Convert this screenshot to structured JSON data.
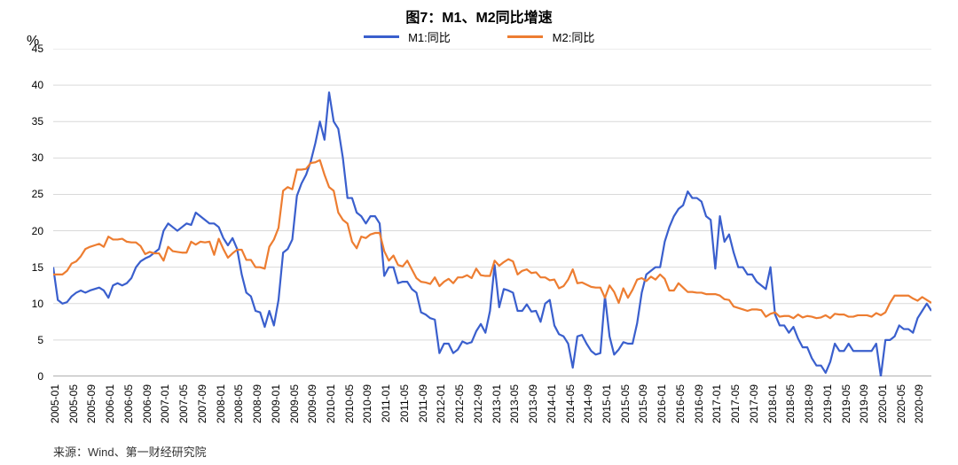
{
  "chart": {
    "title": "图7：M1、M2同比增速",
    "title_fontsize": 16,
    "y_unit": "%",
    "source": "来源：Wind、第一财经研究院",
    "source_fontsize": 13,
    "background_color": "#ffffff",
    "grid_color": "#d9d9d9",
    "axis_color": "#808080",
    "tick_fontsize": 12,
    "legend_fontsize": 13,
    "ylim": [
      0,
      45
    ],
    "ytick_step": 5,
    "yticks": [
      0,
      5,
      10,
      15,
      20,
      25,
      30,
      35,
      40,
      45
    ],
    "line_width": 2.2,
    "series": [
      {
        "name": "M1:同比",
        "color": "#3a5fcd",
        "data": [
          15.0,
          10.5,
          10.0,
          10.2,
          11.0,
          11.5,
          11.8,
          11.5,
          11.8,
          12.0,
          12.2,
          11.8,
          10.8,
          12.5,
          12.8,
          12.5,
          12.8,
          13.5,
          15.0,
          15.8,
          16.2,
          16.5,
          17.0,
          17.5,
          20.0,
          21.0,
          20.5,
          20.0,
          20.5,
          21.0,
          20.8,
          22.5,
          22.0,
          21.5,
          21.0,
          21.0,
          20.5,
          19.0,
          18.0,
          19.0,
          17.5,
          14.0,
          11.5,
          11.0,
          9.0,
          8.8,
          6.8,
          9.0,
          7.0,
          10.5,
          17.0,
          17.5,
          18.8,
          24.8,
          26.5,
          27.7,
          29.5,
          32.0,
          35.0,
          32.5,
          39.0,
          35.0,
          34.0,
          30.0,
          24.5,
          24.5,
          22.5,
          22.0,
          21.0,
          22.0,
          22.0,
          21.0,
          13.8,
          15.0,
          15.0,
          12.8,
          13.0,
          13.0,
          12.0,
          11.5,
          8.8,
          8.5,
          8.0,
          7.8,
          3.2,
          4.5,
          4.5,
          3.2,
          3.7,
          4.8,
          4.5,
          4.7,
          6.2,
          7.2,
          6.0,
          9.0,
          15.3,
          9.5,
          12.0,
          11.8,
          11.5,
          9.0,
          9.0,
          9.9,
          8.9,
          9.0,
          7.5,
          10.0,
          10.5,
          7.0,
          5.8,
          5.5,
          4.5,
          1.2,
          5.5,
          5.7,
          4.5,
          3.5,
          3.0,
          3.2,
          11.0,
          5.5,
          3.0,
          3.7,
          4.7,
          4.5,
          4.5,
          7.3,
          11.5,
          14.0,
          14.5,
          15.0,
          15.0,
          18.5,
          20.5,
          22.0,
          23.0,
          23.5,
          25.4,
          24.5,
          24.5,
          24.0,
          22.0,
          21.5,
          14.8,
          22.0,
          18.5,
          19.5,
          17.0,
          15.0,
          15.0,
          14.0,
          14.0,
          13.0,
          12.5,
          12.0,
          15.0,
          8.5,
          7.0,
          7.0,
          6.0,
          6.8,
          5.2,
          4.0,
          4.0,
          2.5,
          1.5,
          1.5,
          0.5,
          2.0,
          4.5,
          3.5,
          3.5,
          4.5,
          3.5,
          3.5,
          3.5,
          3.5,
          3.5,
          4.5,
          0.0,
          5.0,
          5.0,
          5.5,
          7.0,
          6.5,
          6.5,
          6.0,
          8.0,
          9.0,
          10.0,
          9.0
        ]
      },
      {
        "name": "M2:同比",
        "color": "#ed7d31",
        "data": [
          14.0,
          14.0,
          14.0,
          14.5,
          15.5,
          15.8,
          16.5,
          17.5,
          17.8,
          18.0,
          18.2,
          17.8,
          19.2,
          18.8,
          18.8,
          18.9,
          18.5,
          18.4,
          18.4,
          17.9,
          16.8,
          17.1,
          16.9,
          16.9,
          15.9,
          17.8,
          17.2,
          17.1,
          17.0,
          17.0,
          18.5,
          18.1,
          18.5,
          18.4,
          18.5,
          16.7,
          18.9,
          17.5,
          16.3,
          16.9,
          17.4,
          17.4,
          16.0,
          16.0,
          15.0,
          15.0,
          14.8,
          17.8,
          18.8,
          20.4,
          25.5,
          26.0,
          25.7,
          28.4,
          28.4,
          28.5,
          29.3,
          29.4,
          29.7,
          27.7,
          26.0,
          25.5,
          22.5,
          21.5,
          21.0,
          18.5,
          17.6,
          19.2,
          19.0,
          19.5,
          19.7,
          19.7,
          17.2,
          15.9,
          16.6,
          15.3,
          15.1,
          15.9,
          14.7,
          13.5,
          13.0,
          12.9,
          12.7,
          13.6,
          12.4,
          13.0,
          13.4,
          12.8,
          13.6,
          13.6,
          13.9,
          13.5,
          14.8,
          13.9,
          13.8,
          13.8,
          15.9,
          15.2,
          15.7,
          16.1,
          15.8,
          14.0,
          14.5,
          14.7,
          14.2,
          14.3,
          13.6,
          13.6,
          13.2,
          13.3,
          12.1,
          12.4,
          13.3,
          14.7,
          12.8,
          12.9,
          12.6,
          12.3,
          12.2,
          12.2,
          10.8,
          12.5,
          11.6,
          10.1,
          12.1,
          10.8,
          11.9,
          13.3,
          13.5,
          13.1,
          13.7,
          13.3,
          14.0,
          13.4,
          11.8,
          11.8,
          12.8,
          12.2,
          11.6,
          11.6,
          11.5,
          11.5,
          11.3,
          11.3,
          11.3,
          11.1,
          10.6,
          10.5,
          9.6,
          9.4,
          9.2,
          9.0,
          9.2,
          9.2,
          9.1,
          8.2,
          8.6,
          8.8,
          8.2,
          8.3,
          8.3,
          8.0,
          8.5,
          8.1,
          8.3,
          8.2,
          8.0,
          8.1,
          8.4,
          8.0,
          8.6,
          8.5,
          8.5,
          8.2,
          8.2,
          8.4,
          8.4,
          8.4,
          8.2,
          8.7,
          8.4,
          8.8,
          10.1,
          11.1,
          11.1,
          11.1,
          11.1,
          10.7,
          10.4,
          10.9,
          10.5,
          10.1
        ]
      }
    ],
    "x_labels": [
      "2005-01",
      "2005-05",
      "2005-09",
      "2006-01",
      "2006-05",
      "2006-09",
      "2007-01",
      "2007-05",
      "2007-09",
      "2008-01",
      "2008-05",
      "2008-09",
      "2009-01",
      "2009-05",
      "2009-09",
      "2010-01",
      "2010-05",
      "2010-09",
      "2011-01",
      "2011-05",
      "2011-09",
      "2012-01",
      "2012-05",
      "2012-09",
      "2013-01",
      "2013-05",
      "2013-09",
      "2014-01",
      "2014-05",
      "2014-09",
      "2015-01",
      "2015-05",
      "2015-09",
      "2016-01",
      "2016-05",
      "2016-09",
      "2017-01",
      "2017-05",
      "2017-09",
      "2018-01",
      "2018-05",
      "2018-09",
      "2019-01",
      "2019-05",
      "2019-09",
      "2020-01",
      "2020-05",
      "2020-09"
    ],
    "x_index_step": 4,
    "n_points": 192
  }
}
